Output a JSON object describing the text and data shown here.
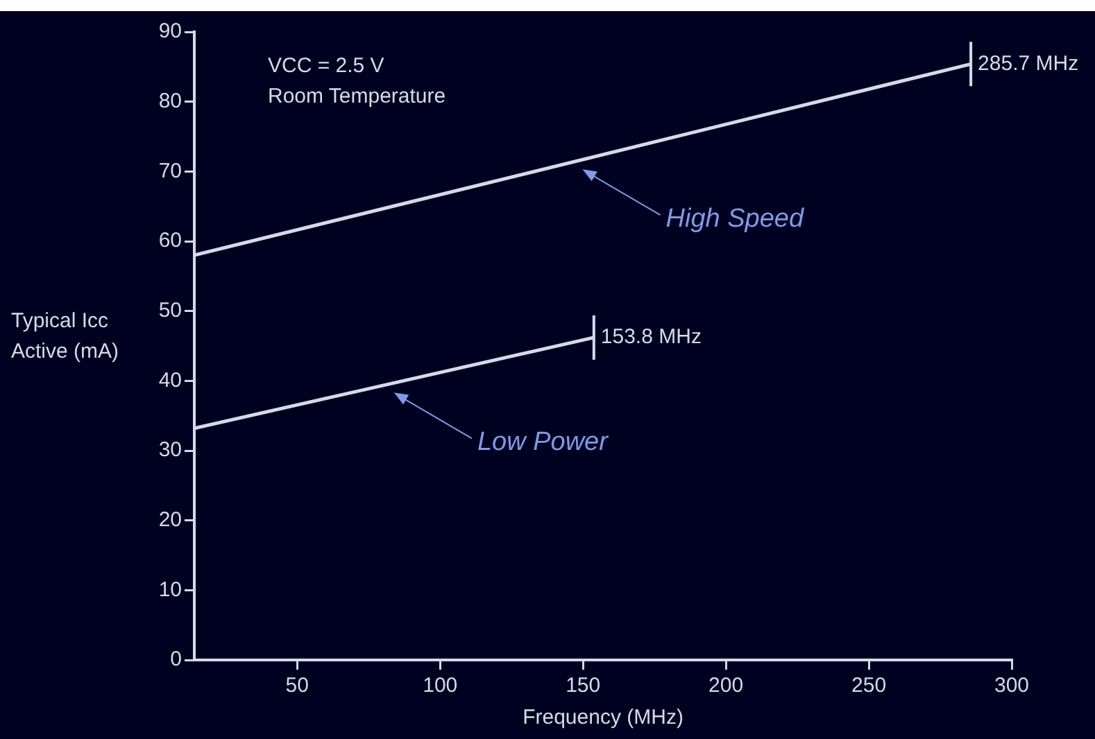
{
  "chart_data": {
    "type": "line",
    "xlabel": "Frequency (MHz)",
    "ylabel": "Typical Icc Active (mA)",
    "annotations": [
      "VCC = 2.5 V",
      "Room Temperature",
      {
        "text": "285.7 MHz",
        "x": 285.7,
        "y": 85.4
      },
      {
        "text": "153.8 MHz",
        "x": 153.8,
        "y": 46.2
      }
    ],
    "series": [
      {
        "name": "High Speed",
        "color": "#d8d8e8",
        "x": [
          14,
          285.7
        ],
        "values": [
          58,
          85.4
        ]
      },
      {
        "name": "Low Power",
        "color": "#d8d8e8",
        "x": [
          14,
          153.8
        ],
        "values": [
          33.2,
          46.2
        ]
      }
    ],
    "xlim": [
      14,
      300
    ],
    "xticks": [
      50,
      100,
      150,
      200,
      250,
      300
    ],
    "ylim": [
      0,
      90
    ],
    "yticks": [
      0,
      10,
      20,
      30,
      40,
      50,
      60,
      70,
      80,
      90
    ],
    "grid": false,
    "legend": false,
    "marker": "none",
    "line_style": "solid"
  }
}
